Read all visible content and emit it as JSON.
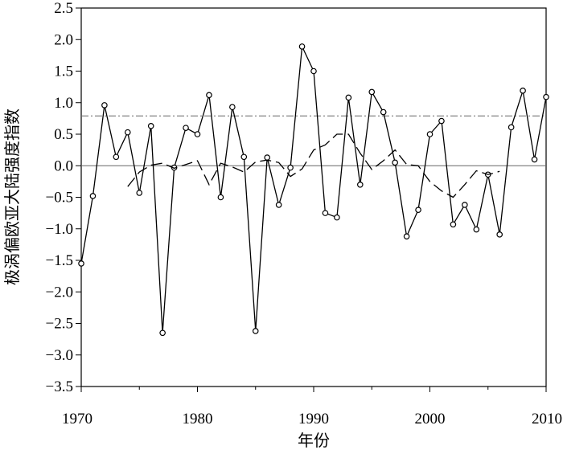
{
  "chart_data": {
    "type": "line",
    "xlabel": "年份",
    "ylabel": "极涡偏欧亚大陆强度指数",
    "xlim": [
      1970,
      2010
    ],
    "ylim": [
      -3.5,
      2.5
    ],
    "x_ticks": [
      1970,
      1980,
      1990,
      2000,
      2010
    ],
    "x_tick_labels": [
      "1970",
      "1980",
      "1990",
      "2000",
      "2010"
    ],
    "y_ticks": [
      2.5,
      2.0,
      1.5,
      1.0,
      0.5,
      0.0,
      -0.5,
      -1.0,
      -1.5,
      -2.0,
      -2.5,
      -3.0,
      -3.5
    ],
    "y_tick_labels": [
      "2.5",
      "2.0",
      "1.5",
      "1.0",
      "0.5",
      "0.0",
      "−0.5",
      "−1.0",
      "−1.5",
      "−2.0",
      "−2.5",
      "−3.0",
      "−3.5"
    ],
    "grid": false,
    "series": [
      {
        "style": "solid line with open circle markers",
        "color": "#000000",
        "x": [
          1970,
          1971,
          1972,
          1973,
          1974,
          1975,
          1976,
          1977,
          1978,
          1979,
          1980,
          1981,
          1982,
          1983,
          1984,
          1985,
          1986,
          1987,
          1988,
          1989,
          1990,
          1991,
          1992,
          1993,
          1994,
          1995,
          1996,
          1997,
          1998,
          1999,
          2000,
          2001,
          2002,
          2003,
          2004,
          2005,
          2006,
          2007,
          2008,
          2009,
          2010
        ],
        "y": [
          -1.55,
          -0.48,
          0.96,
          0.14,
          0.53,
          -0.43,
          0.63,
          -2.65,
          -0.03,
          0.6,
          0.5,
          1.12,
          -0.5,
          0.93,
          0.14,
          -2.62,
          0.13,
          -0.62,
          -0.03,
          1.89,
          1.5,
          -0.75,
          -0.82,
          1.08,
          -0.3,
          1.17,
          0.85,
          0.05,
          -1.12,
          -0.7,
          0.5,
          0.71,
          -0.93,
          -0.62,
          -1.01,
          -0.14,
          -1.09,
          0.61,
          1.19,
          0.1,
          1.09
        ]
      },
      {
        "style": "dashed line (running mean)",
        "color": "#000000",
        "x": [
          1974,
          1975,
          1976,
          1977,
          1978,
          1979,
          1980,
          1981,
          1982,
          1983,
          1984,
          1985,
          1986,
          1987,
          1988,
          1989,
          1990,
          1991,
          1992,
          1993,
          1994,
          1995,
          1996,
          1997,
          1998,
          1999,
          2000,
          2001,
          2002,
          2003,
          2004,
          2005,
          2006
        ],
        "y": [
          -0.33,
          -0.1,
          0.01,
          0.04,
          -0.04,
          0.02,
          0.08,
          -0.3,
          0.04,
          -0.02,
          -0.1,
          0.06,
          0.09,
          0.05,
          -0.17,
          -0.05,
          0.25,
          0.33,
          0.5,
          0.5,
          0.2,
          -0.06,
          0.08,
          0.25,
          0.02,
          0.0,
          -0.25,
          -0.4,
          -0.5,
          -0.3,
          -0.08,
          -0.14,
          -0.09
        ]
      }
    ],
    "reference_lines": [
      {
        "y": 0.0,
        "style": "solid",
        "color": "#666666"
      },
      {
        "y": 0.79,
        "style": "dash-dot",
        "color": "#666666"
      }
    ]
  }
}
